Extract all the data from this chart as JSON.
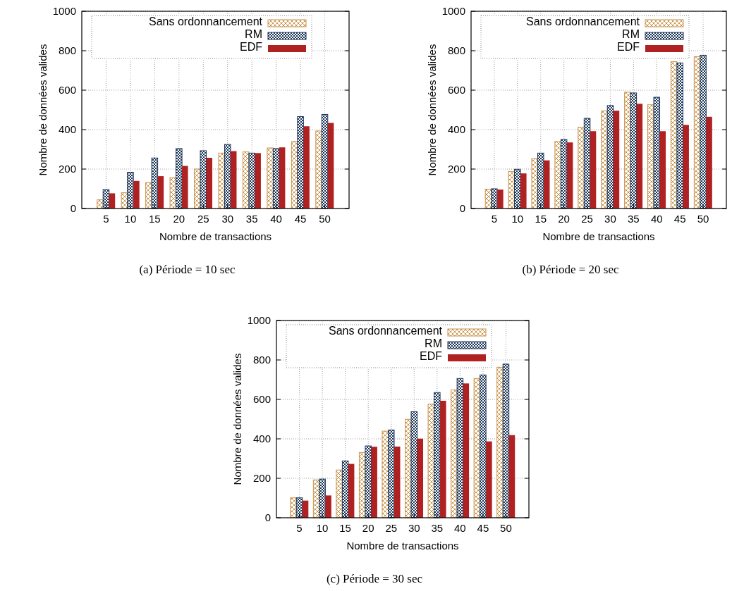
{
  "chart_data": [
    {
      "type": "bar",
      "xlabel": "Nombre de transactions",
      "ylabel": "Nombre de données valides",
      "annotations": [
        "(a) Période = 10 sec"
      ],
      "categories": [
        "5",
        "10",
        "15",
        "20",
        "25",
        "30",
        "35",
        "40",
        "45",
        "50"
      ],
      "ylim": [
        0,
        1000
      ],
      "yticks": [
        0,
        200,
        400,
        600,
        800,
        1000
      ],
      "grid": true,
      "legend": "top",
      "series": [
        {
          "name": "Sans ordonnancement",
          "color": "#c8944c",
          "values": [
            44,
            80,
            132,
            156,
            200,
            281,
            287,
            307,
            340,
            393
          ]
        },
        {
          "name": "RM",
          "color": "#1b3558",
          "values": [
            96,
            184,
            256,
            304,
            293,
            325,
            281,
            304,
            466,
            477
          ]
        },
        {
          "name": "EDF",
          "color": "#b02222",
          "values": [
            77,
            140,
            164,
            216,
            257,
            291,
            281,
            310,
            417,
            434
          ]
        }
      ]
    },
    {
      "type": "bar",
      "xlabel": "Nombre de transactions",
      "ylabel": "Nombre de données valides",
      "annotations": [
        "(b) Période = 20 sec"
      ],
      "categories": [
        "5",
        "10",
        "15",
        "20",
        "25",
        "30",
        "35",
        "40",
        "45",
        "50"
      ],
      "ylim": [
        0,
        1000
      ],
      "yticks": [
        0,
        200,
        400,
        600,
        800,
        1000
      ],
      "grid": true,
      "legend": "top",
      "series": [
        {
          "name": "Sans ordonnancement",
          "color": "#c8944c",
          "values": [
            98,
            188,
            253,
            340,
            412,
            495,
            590,
            526,
            745,
            770
          ]
        },
        {
          "name": "RM",
          "color": "#1b3558",
          "values": [
            100,
            199,
            281,
            350,
            457,
            522,
            586,
            564,
            738,
            777
          ]
        },
        {
          "name": "EDF",
          "color": "#b02222",
          "values": [
            96,
            178,
            244,
            335,
            392,
            496,
            531,
            392,
            424,
            465
          ]
        }
      ]
    },
    {
      "type": "bar",
      "xlabel": "Nombre de transactions",
      "ylabel": "Nombre de données valides",
      "annotations": [
        "(c) Période = 30 sec"
      ],
      "categories": [
        "5",
        "10",
        "15",
        "20",
        "25",
        "30",
        "35",
        "40",
        "45",
        "50"
      ],
      "ylim": [
        0,
        1000
      ],
      "yticks": [
        0,
        200,
        400,
        600,
        800,
        1000
      ],
      "grid": true,
      "legend": "top",
      "series": [
        {
          "name": "Sans ordonnancement",
          "color": "#c8944c",
          "values": [
            101,
            192,
            242,
            331,
            439,
            499,
            576,
            648,
            706,
            763
          ]
        },
        {
          "name": "RM",
          "color": "#1b3558",
          "values": [
            101,
            196,
            288,
            364,
            445,
            538,
            635,
            706,
            724,
            779
          ]
        },
        {
          "name": "EDF",
          "color": "#b02222",
          "values": [
            87,
            113,
            273,
            360,
            361,
            401,
            593,
            681,
            387,
            419
          ]
        }
      ]
    }
  ]
}
